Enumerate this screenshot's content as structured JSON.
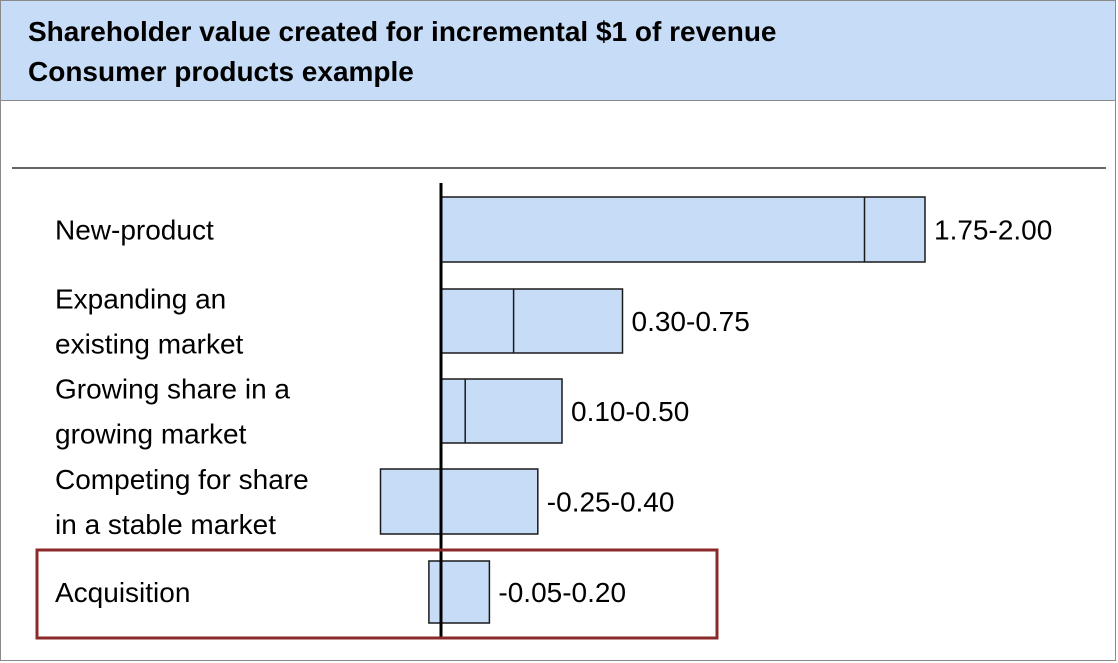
{
  "header": {
    "title": "Shareholder value created for incremental $1 of revenue",
    "subtitle": "Consumer products example"
  },
  "colors": {
    "header_bg": "#c6dcf7",
    "bar_fill": "#c6dcf7",
    "bar_stroke": "#1a1a1a",
    "highlight_border": "#8b2a2a"
  },
  "chart_data": {
    "type": "bar",
    "orientation": "horizontal",
    "title": "Shareholder value created for incremental $1 of revenue",
    "subtitle": "Consumer products example",
    "categories": [
      [
        "New-product"
      ],
      [
        "Expanding an",
        "existing market"
      ],
      [
        "Growing share in a",
        "growing market"
      ],
      [
        "Competing for share",
        "in a stable market"
      ],
      [
        "Acquisition"
      ]
    ],
    "ranges": [
      [
        1.75,
        2.0
      ],
      [
        0.3,
        0.75
      ],
      [
        0.1,
        0.5
      ],
      [
        -0.25,
        0.4
      ],
      [
        -0.05,
        0.2
      ]
    ],
    "value_labels": [
      "1.75-2.00",
      "0.30-0.75",
      "0.10-0.50",
      "-0.25-0.40",
      "-0.05-0.20"
    ],
    "highlighted": [
      "Acquisition"
    ]
  }
}
